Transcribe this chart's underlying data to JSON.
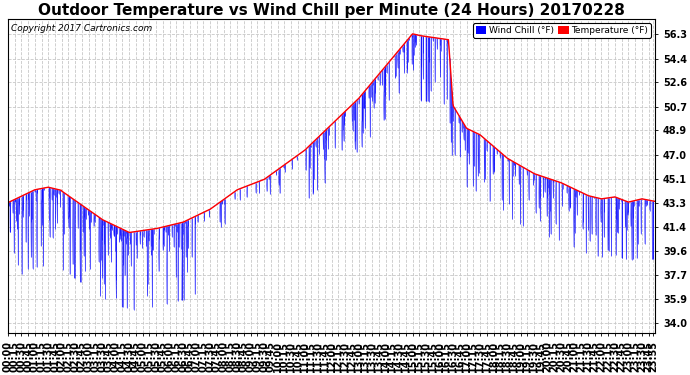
{
  "title": "Outdoor Temperature vs Wind Chill per Minute (24 Hours) 20170228",
  "copyright_text": "Copyright 2017 Cartronics.com",
  "legend_wind_chill": "Wind Chill (°F)",
  "legend_temperature": "Temperature (°F)",
  "wind_chill_color": "#0000ff",
  "temperature_color": "#ff0000",
  "background_color": "#ffffff",
  "grid_color": "#c8c8c8",
  "yticks": [
    34.0,
    35.9,
    37.7,
    39.6,
    41.4,
    43.3,
    45.1,
    47.0,
    48.9,
    50.7,
    52.6,
    54.4,
    56.3
  ],
  "ylim": [
    33.2,
    57.5
  ],
  "title_fontsize": 11,
  "tick_fontsize": 7,
  "copyright_fontsize": 6.5
}
